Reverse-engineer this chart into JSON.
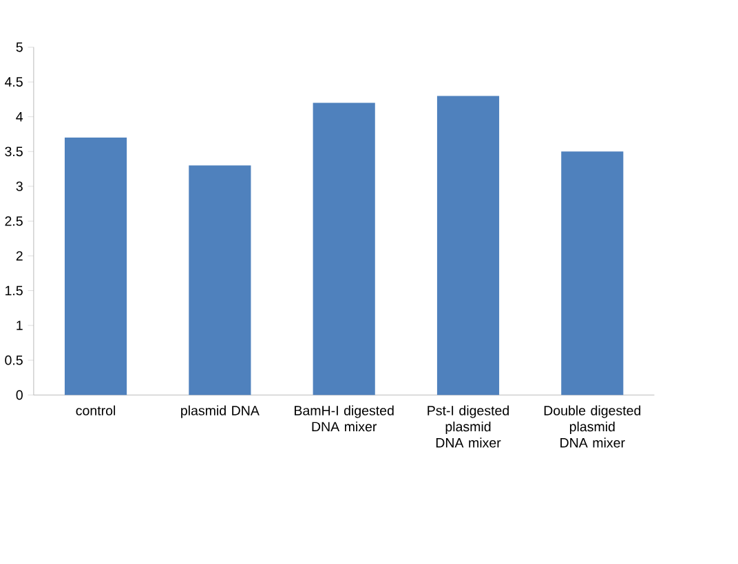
{
  "chart_data": {
    "type": "bar",
    "categories": [
      "control",
      "plasmid DNA",
      "BamH-I digested DNA mixer",
      "Pst-I digested plasmid DNA mixer",
      "Double digested plasmid DNA mixer"
    ],
    "values": [
      3.7,
      3.3,
      4.2,
      4.3,
      3.5
    ],
    "color": "#4f81bd",
    "ylim": [
      0,
      5
    ],
    "yticks": [
      0,
      0.5,
      1,
      1.5,
      2,
      2.5,
      3,
      3.5,
      4,
      4.5,
      5
    ]
  }
}
